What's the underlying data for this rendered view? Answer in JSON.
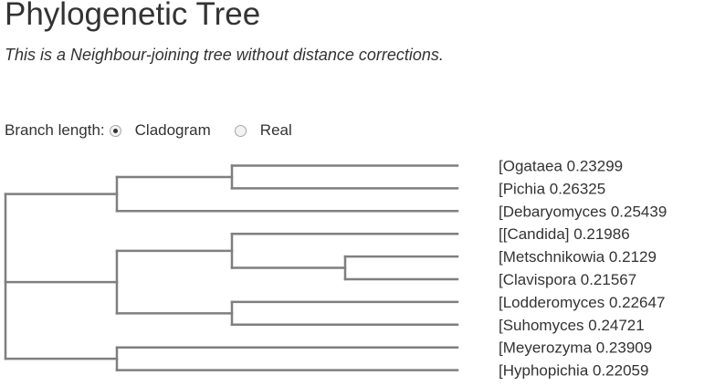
{
  "header": {
    "title": "Phylogenetic Tree",
    "subtitle": "This is a Neighbour-joining tree without distance corrections."
  },
  "branch_length": {
    "label": "Branch length:",
    "options": [
      {
        "label": "Cladogram",
        "selected": true
      },
      {
        "label": "Real",
        "selected": false
      }
    ]
  },
  "tree": {
    "newick": "((([Ogataea,[Pichia),[Debaryomyces),(([[Candida],([Metschnikowia,[Clavispora)),([Lodderomyces,[Suhomyces)),([Meyerozyma,[Hyphopichia));",
    "branch_color": "#7f7f7f",
    "leaves": [
      {
        "name": "[Ogataea",
        "value": "0.23299"
      },
      {
        "name": "[Pichia",
        "value": "0.26325"
      },
      {
        "name": "[Debaryomyces",
        "value": "0.25439"
      },
      {
        "name": "[[Candida]",
        "value": "0.21986"
      },
      {
        "name": "[Metschnikowia",
        "value": "0.2129"
      },
      {
        "name": "[Clavispora",
        "value": "0.21567"
      },
      {
        "name": "[Lodderomyces",
        "value": "0.22647"
      },
      {
        "name": "[Suhomyces",
        "value": "0.24721"
      },
      {
        "name": "[Meyerozyma",
        "value": "0.23909"
      },
      {
        "name": "[Hyphopichia",
        "value": "0.22059"
      }
    ]
  }
}
